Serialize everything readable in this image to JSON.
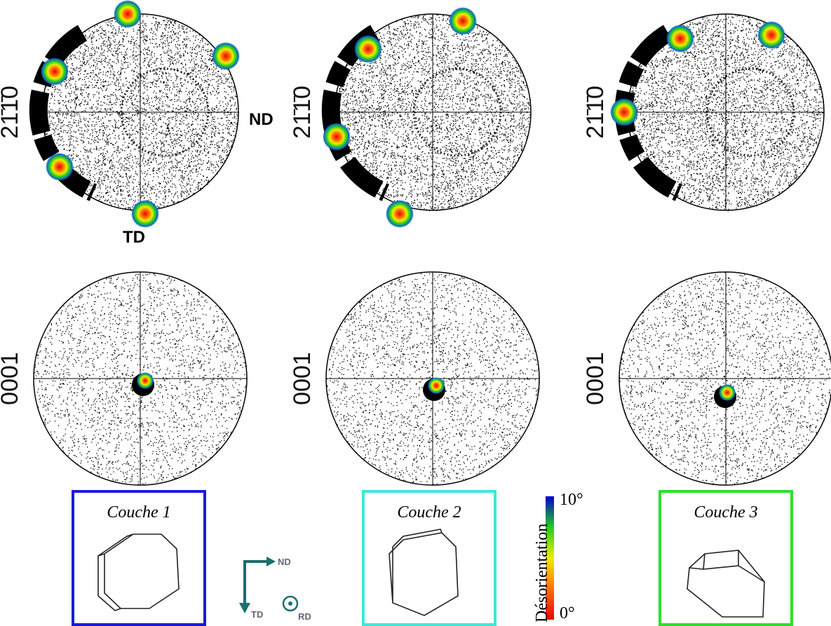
{
  "panels": [
    {
      "top_label": "21̄1̄0",
      "bottom_label": "0001",
      "layer": "Couche 1"
    },
    {
      "top_label": "21̄1̄0",
      "bottom_label": "0001",
      "layer": "Couche 2"
    },
    {
      "top_label": "21̄1̄0",
      "bottom_label": "0001",
      "layer": "Couche 3"
    }
  ],
  "directions": {
    "nd": "ND",
    "td": "TD"
  },
  "colorbar": {
    "title": "Désorientation",
    "max": "10°",
    "min": "0°"
  },
  "frame": {
    "nd": "ND",
    "td": "TD",
    "rd": "RD"
  }
}
